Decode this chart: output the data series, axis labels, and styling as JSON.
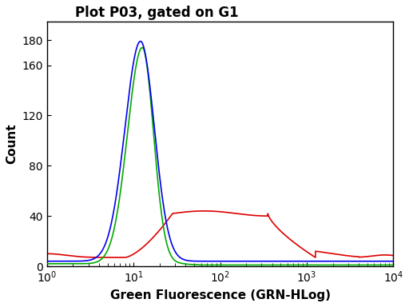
{
  "title": "Plot P03, gated on G1",
  "xlabel": "Green Fluorescence (GRN-HLog)",
  "ylabel": "Count",
  "xlim_log": [
    1,
    10000
  ],
  "ylim": [
    0,
    195
  ],
  "yticks": [
    0,
    40,
    80,
    120,
    160,
    180
  ],
  "ytick_labels": [
    "0",
    "40",
    "80",
    "120",
    "160",
    "180"
  ],
  "background_color": "#ffffff",
  "title_color": "#000000",
  "label_color": "#000000",
  "tick_color": "#000000",
  "blue_color": "#0000ee",
  "green_color": "#00aa00",
  "red_color": "#dd0000",
  "line_width": 1.2
}
